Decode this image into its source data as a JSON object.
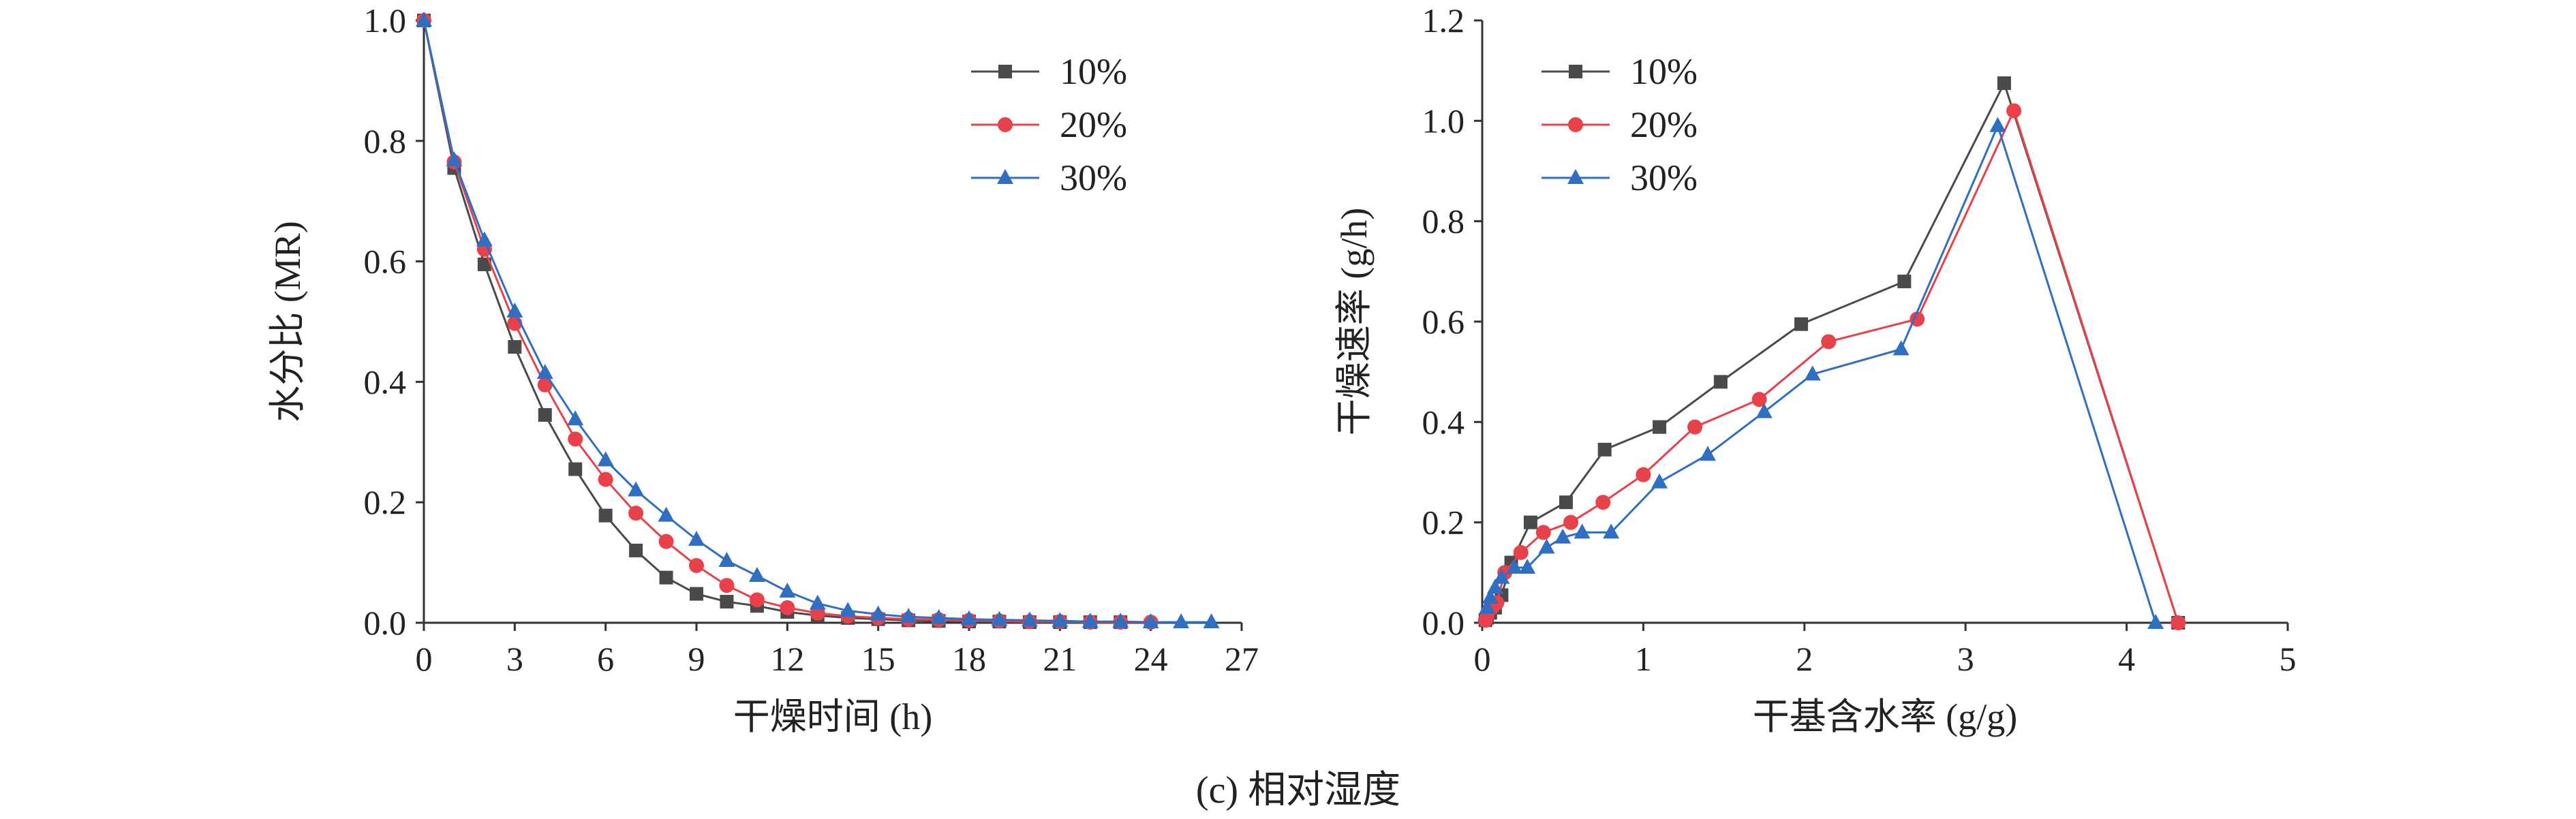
{
  "caption": "(c) 相对湿度",
  "colors": {
    "axis": "#333333",
    "s1": "#4a4a4a",
    "s2": "#e8414a",
    "s3": "#2e6fc4"
  },
  "chart_data": [
    {
      "type": "line",
      "xlabel": "干燥时间 (h)",
      "ylabel": "水分比 (MR)",
      "xlim": [
        0,
        27
      ],
      "ylim": [
        0,
        1.0
      ],
      "xticks": [
        "0",
        "3",
        "6",
        "9",
        "12",
        "15",
        "18",
        "21",
        "24",
        "27"
      ],
      "yticks": [
        "0.0",
        "0.2",
        "0.4",
        "0.6",
        "0.8",
        "1.0"
      ],
      "legend": "top-right",
      "series": [
        {
          "name": "10%",
          "marker": "square",
          "color": "#4a4a4a",
          "x": [
            0,
            1,
            2,
            3,
            4,
            5,
            6,
            7,
            8,
            9,
            10,
            11,
            12,
            13,
            14,
            15,
            16,
            17,
            18,
            19,
            20,
            21,
            22,
            23
          ],
          "y": [
            1.0,
            0.755,
            0.595,
            0.458,
            0.345,
            0.255,
            0.178,
            0.12,
            0.075,
            0.048,
            0.035,
            0.028,
            0.018,
            0.012,
            0.008,
            0.006,
            0.004,
            0.003,
            0.002,
            0.002,
            0.001,
            0.001,
            0.001,
            0.001
          ]
        },
        {
          "name": "20%",
          "marker": "circle",
          "color": "#e8414a",
          "x": [
            0,
            1,
            2,
            3,
            4,
            5,
            6,
            7,
            8,
            9,
            10,
            11,
            12,
            13,
            14,
            15,
            16,
            17,
            18,
            19,
            20,
            21,
            22,
            23,
            24
          ],
          "y": [
            1.0,
            0.765,
            0.62,
            0.497,
            0.395,
            0.305,
            0.238,
            0.182,
            0.135,
            0.095,
            0.062,
            0.038,
            0.025,
            0.016,
            0.011,
            0.008,
            0.006,
            0.005,
            0.004,
            0.003,
            0.002,
            0.002,
            0.001,
            0.001,
            0.001
          ]
        },
        {
          "name": "30%",
          "marker": "triangle",
          "color": "#2e6fc4",
          "x": [
            0,
            1,
            2,
            3,
            4,
            5,
            6,
            7,
            8,
            9,
            10,
            11,
            12,
            13,
            14,
            15,
            16,
            17,
            18,
            19,
            20,
            21,
            22,
            23,
            24,
            25,
            26
          ],
          "y": [
            1.0,
            0.768,
            0.635,
            0.517,
            0.415,
            0.338,
            0.27,
            0.22,
            0.178,
            0.138,
            0.103,
            0.078,
            0.052,
            0.032,
            0.02,
            0.014,
            0.01,
            0.008,
            0.006,
            0.005,
            0.004,
            0.003,
            0.002,
            0.002,
            0.001,
            0.001,
            0.001
          ]
        }
      ]
    },
    {
      "type": "line",
      "xlabel": "干基含水率 (g/g)",
      "ylabel": "干燥速率 (g/h)",
      "xlim": [
        0,
        5
      ],
      "ylim": [
        0,
        1.2
      ],
      "xticks": [
        "0",
        "1",
        "2",
        "3",
        "4",
        "5"
      ],
      "yticks": [
        "0.0",
        "0.2",
        "0.4",
        "0.6",
        "0.8",
        "1.0",
        "1.2"
      ],
      "legend": "top-left",
      "series": [
        {
          "name": "10%",
          "marker": "square",
          "color": "#4a4a4a",
          "x": [
            4.32,
            3.24,
            2.62,
            1.98,
            1.48,
            1.1,
            0.76,
            0.52,
            0.3,
            0.18,
            0.12,
            0.08,
            0.05,
            0.03,
            0.02
          ],
          "y": [
            0.0,
            1.075,
            0.68,
            0.595,
            0.48,
            0.39,
            0.345,
            0.24,
            0.2,
            0.12,
            0.055,
            0.03,
            0.02,
            0.01,
            0.005
          ]
        },
        {
          "name": "20%",
          "marker": "circle",
          "color": "#e8414a",
          "x": [
            4.32,
            3.3,
            2.7,
            2.15,
            1.72,
            1.32,
            1.0,
            0.75,
            0.55,
            0.38,
            0.24,
            0.14,
            0.09,
            0.06,
            0.03,
            0.02
          ],
          "y": [
            0.0,
            1.02,
            0.605,
            0.56,
            0.445,
            0.39,
            0.295,
            0.24,
            0.2,
            0.18,
            0.14,
            0.1,
            0.04,
            0.03,
            0.015,
            0.005
          ]
        },
        {
          "name": "30%",
          "marker": "triangle",
          "color": "#2e6fc4",
          "x": [
            4.18,
            3.2,
            2.6,
            2.05,
            1.75,
            1.4,
            1.1,
            0.8,
            0.62,
            0.5,
            0.4,
            0.28,
            0.2,
            0.12,
            0.08,
            0.05,
            0.03
          ],
          "y": [
            0.0,
            0.99,
            0.545,
            0.495,
            0.42,
            0.335,
            0.28,
            0.18,
            0.18,
            0.17,
            0.15,
            0.11,
            0.11,
            0.09,
            0.07,
            0.05,
            0.03
          ]
        }
      ]
    }
  ]
}
